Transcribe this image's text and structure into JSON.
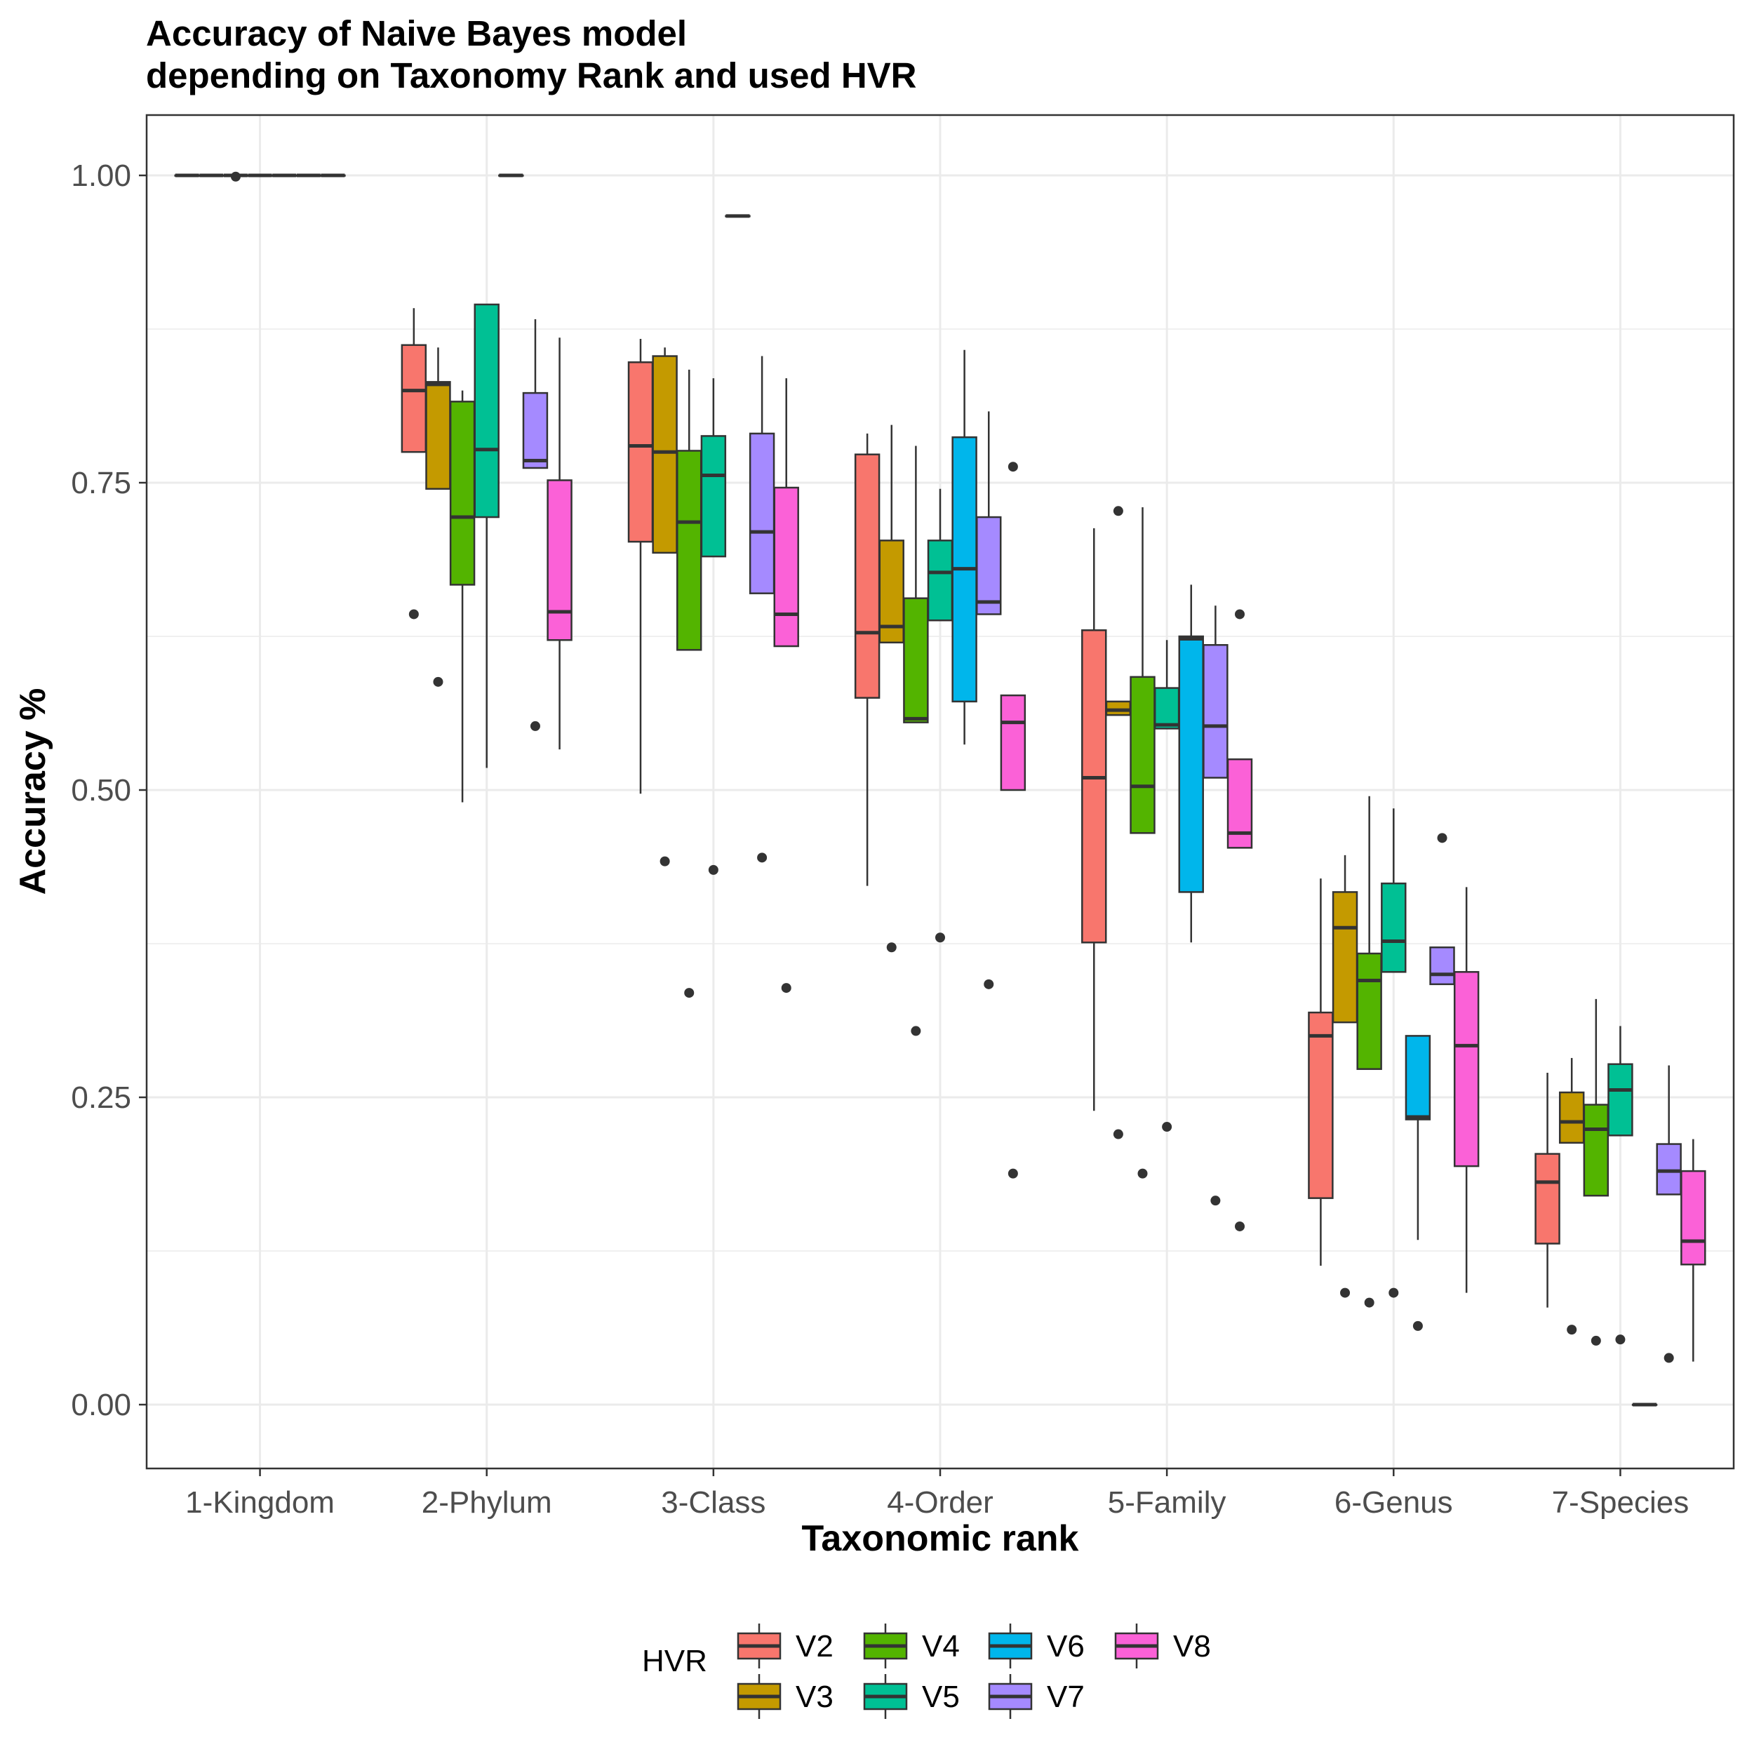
{
  "chart_data": {
    "type": "boxplot",
    "title_lines": [
      "Accuracy of Naive Bayes model",
      "depending on Taxonomy Rank and used HVR"
    ],
    "xlabel": "Taxonomic rank",
    "ylabel": "Accuracy %",
    "ylim": [
      -0.05,
      1.05
    ],
    "yticks": [
      0.0,
      0.25,
      0.5,
      0.75,
      1.0
    ],
    "ytick_labels": [
      "0.00",
      "0.25",
      "0.50",
      "0.75",
      "1.00"
    ],
    "categories": [
      "1-Kingdom",
      "2-Phylum",
      "3-Class",
      "4-Order",
      "5-Family",
      "6-Genus",
      "7-Species"
    ],
    "legend": {
      "title": "HVR",
      "position": "bottom"
    },
    "series": [
      {
        "name": "V2",
        "color": "#F8766D",
        "boxes": [
          {
            "q1": 1.0,
            "median": 1.0,
            "q3": 1.0,
            "wlo": 1.0,
            "whi": 1.0,
            "outliers": []
          },
          {
            "q1": 0.775,
            "median": 0.825,
            "q3": 0.862,
            "wlo": 0.775,
            "whi": 0.892,
            "outliers": [
              0.643
            ]
          },
          {
            "q1": 0.702,
            "median": 0.78,
            "q3": 0.848,
            "wlo": 0.497,
            "whi": 0.867,
            "outliers": []
          },
          {
            "q1": 0.575,
            "median": 0.628,
            "q3": 0.773,
            "wlo": 0.422,
            "whi": 0.79,
            "outliers": []
          },
          {
            "q1": 0.376,
            "median": 0.51,
            "q3": 0.63,
            "wlo": 0.239,
            "whi": 0.713,
            "outliers": []
          },
          {
            "q1": 0.168,
            "median": 0.3,
            "q3": 0.319,
            "wlo": 0.113,
            "whi": 0.428,
            "outliers": []
          },
          {
            "q1": 0.131,
            "median": 0.181,
            "q3": 0.204,
            "wlo": 0.079,
            "whi": 0.27,
            "outliers": []
          }
        ]
      },
      {
        "name": "V3",
        "color": "#C49A00",
        "boxes": [
          {
            "q1": 1.0,
            "median": 1.0,
            "q3": 1.0,
            "wlo": 1.0,
            "whi": 1.0,
            "outliers": []
          },
          {
            "q1": 0.745,
            "median": 0.83,
            "q3": 0.832,
            "wlo": 0.745,
            "whi": 0.86,
            "outliers": [
              0.588
            ]
          },
          {
            "q1": 0.693,
            "median": 0.775,
            "q3": 0.853,
            "wlo": 0.693,
            "whi": 0.86,
            "outliers": [
              0.442
            ]
          },
          {
            "q1": 0.62,
            "median": 0.633,
            "q3": 0.703,
            "wlo": 0.62,
            "whi": 0.797,
            "outliers": [
              0.372
            ]
          },
          {
            "q1": 0.561,
            "median": 0.565,
            "q3": 0.572,
            "wlo": 0.561,
            "whi": 0.572,
            "outliers": [
              0.727,
              0.22
            ]
          },
          {
            "q1": 0.311,
            "median": 0.388,
            "q3": 0.417,
            "wlo": 0.311,
            "whi": 0.447,
            "outliers": [
              0.091
            ]
          },
          {
            "q1": 0.213,
            "median": 0.23,
            "q3": 0.254,
            "wlo": 0.213,
            "whi": 0.282,
            "outliers": [
              0.061
            ]
          }
        ]
      },
      {
        "name": "V4",
        "color": "#53B400",
        "boxes": [
          {
            "q1": 1.0,
            "median": 1.0,
            "q3": 1.0,
            "wlo": 1.0,
            "whi": 1.0,
            "outliers": [
              0.999
            ]
          },
          {
            "q1": 0.667,
            "median": 0.722,
            "q3": 0.816,
            "wlo": 0.49,
            "whi": 0.825,
            "outliers": []
          },
          {
            "q1": 0.614,
            "median": 0.718,
            "q3": 0.776,
            "wlo": 0.614,
            "whi": 0.842,
            "outliers": [
              0.335
            ]
          },
          {
            "q1": 0.555,
            "median": 0.558,
            "q3": 0.656,
            "wlo": 0.555,
            "whi": 0.78,
            "outliers": [
              0.304
            ]
          },
          {
            "q1": 0.465,
            "median": 0.503,
            "q3": 0.592,
            "wlo": 0.465,
            "whi": 0.73,
            "outliers": [
              0.188
            ]
          },
          {
            "q1": 0.273,
            "median": 0.345,
            "q3": 0.367,
            "wlo": 0.273,
            "whi": 0.495,
            "outliers": [
              0.083
            ]
          },
          {
            "q1": 0.17,
            "median": 0.224,
            "q3": 0.244,
            "wlo": 0.17,
            "whi": 0.33,
            "outliers": [
              0.052
            ]
          }
        ]
      },
      {
        "name": "V5",
        "color": "#00C094",
        "boxes": [
          {
            "q1": 1.0,
            "median": 1.0,
            "q3": 1.0,
            "wlo": 1.0,
            "whi": 1.0,
            "outliers": []
          },
          {
            "q1": 0.722,
            "median": 0.777,
            "q3": 0.895,
            "wlo": 0.518,
            "whi": 0.895,
            "outliers": []
          },
          {
            "q1": 0.69,
            "median": 0.756,
            "q3": 0.788,
            "wlo": 0.69,
            "whi": 0.835,
            "outliers": [
              0.435
            ]
          },
          {
            "q1": 0.638,
            "median": 0.677,
            "q3": 0.703,
            "wlo": 0.638,
            "whi": 0.745,
            "outliers": [
              0.38
            ]
          },
          {
            "q1": 0.55,
            "median": 0.553,
            "q3": 0.583,
            "wlo": 0.55,
            "whi": 0.622,
            "outliers": [
              0.226
            ]
          },
          {
            "q1": 0.352,
            "median": 0.377,
            "q3": 0.424,
            "wlo": 0.352,
            "whi": 0.485,
            "outliers": [
              0.091
            ]
          },
          {
            "q1": 0.219,
            "median": 0.256,
            "q3": 0.277,
            "wlo": 0.219,
            "whi": 0.308,
            "outliers": [
              0.053
            ]
          }
        ]
      },
      {
        "name": "V6",
        "color": "#00B6EB",
        "boxes": [
          {
            "q1": 1.0,
            "median": 1.0,
            "q3": 1.0,
            "wlo": 1.0,
            "whi": 1.0,
            "outliers": []
          },
          {
            "q1": 1.0,
            "median": 1.0,
            "q3": 1.0,
            "wlo": 1.0,
            "whi": 1.0,
            "outliers": []
          },
          {
            "q1": 0.967,
            "median": 0.967,
            "q3": 0.967,
            "wlo": 0.967,
            "whi": 0.967,
            "outliers": []
          },
          {
            "q1": 0.572,
            "median": 0.68,
            "q3": 0.787,
            "wlo": 0.537,
            "whi": 0.858,
            "outliers": []
          },
          {
            "q1": 0.417,
            "median": 0.623,
            "q3": 0.625,
            "wlo": 0.376,
            "whi": 0.667,
            "outliers": []
          },
          {
            "q1": 0.232,
            "median": 0.234,
            "q3": 0.3,
            "wlo": 0.134,
            "whi": 0.3,
            "outliers": [
              0.064
            ]
          },
          {
            "q1": 0.0,
            "median": 0.0,
            "q3": 0.0,
            "wlo": 0.0,
            "whi": 0.0,
            "outliers": []
          }
        ]
      },
      {
        "name": "V7",
        "color": "#A58AFF",
        "boxes": [
          {
            "q1": 1.0,
            "median": 1.0,
            "q3": 1.0,
            "wlo": 1.0,
            "whi": 1.0,
            "outliers": []
          },
          {
            "q1": 0.762,
            "median": 0.768,
            "q3": 0.823,
            "wlo": 0.762,
            "whi": 0.883,
            "outliers": [
              0.552
            ]
          },
          {
            "q1": 0.66,
            "median": 0.71,
            "q3": 0.79,
            "wlo": 0.66,
            "whi": 0.853,
            "outliers": [
              0.445
            ]
          },
          {
            "q1": 0.643,
            "median": 0.653,
            "q3": 0.722,
            "wlo": 0.643,
            "whi": 0.808,
            "outliers": [
              0.342
            ]
          },
          {
            "q1": 0.51,
            "median": 0.552,
            "q3": 0.618,
            "wlo": 0.51,
            "whi": 0.65,
            "outliers": [
              0.166
            ]
          },
          {
            "q1": 0.342,
            "median": 0.35,
            "q3": 0.372,
            "wlo": 0.342,
            "whi": 0.372,
            "outliers": [
              0.461
            ]
          },
          {
            "q1": 0.171,
            "median": 0.19,
            "q3": 0.212,
            "wlo": 0.171,
            "whi": 0.276,
            "outliers": [
              0.038
            ]
          }
        ]
      },
      {
        "name": "V8",
        "color": "#FB61D7",
        "boxes": [
          {
            "q1": 1.0,
            "median": 1.0,
            "q3": 1.0,
            "wlo": 1.0,
            "whi": 1.0,
            "outliers": []
          },
          {
            "q1": 0.622,
            "median": 0.645,
            "q3": 0.752,
            "wlo": 0.533,
            "whi": 0.868,
            "outliers": []
          },
          {
            "q1": 0.617,
            "median": 0.643,
            "q3": 0.746,
            "wlo": 0.617,
            "whi": 0.835,
            "outliers": [
              0.339
            ]
          },
          {
            "q1": 0.5,
            "median": 0.555,
            "q3": 0.577,
            "wlo": 0.5,
            "whi": 0.577,
            "outliers": [
              0.763,
              0.188
            ]
          },
          {
            "q1": 0.453,
            "median": 0.465,
            "q3": 0.525,
            "wlo": 0.453,
            "whi": 0.525,
            "outliers": [
              0.643,
              0.145
            ]
          },
          {
            "q1": 0.194,
            "median": 0.292,
            "q3": 0.352,
            "wlo": 0.091,
            "whi": 0.421,
            "outliers": []
          },
          {
            "q1": 0.114,
            "median": 0.133,
            "q3": 0.19,
            "wlo": 0.035,
            "whi": 0.216,
            "outliers": []
          }
        ]
      }
    ]
  }
}
